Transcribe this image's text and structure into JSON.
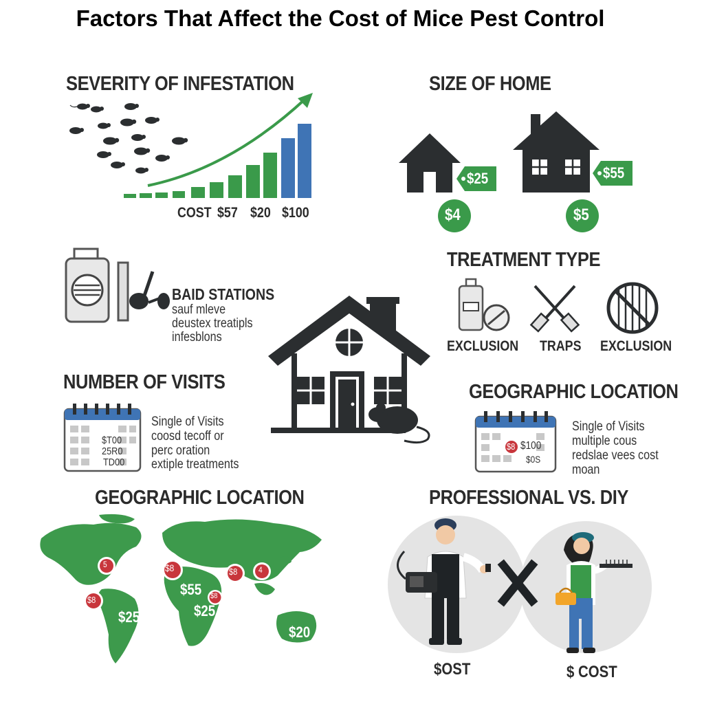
{
  "title": "Factors That Affect the Cost of Mice Pest Control",
  "severity": {
    "heading": "SEVERITY OF INFESTATION",
    "cost_labels": [
      "COST",
      "$57",
      "$20",
      "$100"
    ]
  },
  "size_of_home": {
    "heading": "SIZE OF HOME",
    "small_home_tag": "$25",
    "large_home_tag": "$55",
    "small_home_badge": "$4",
    "large_home_badge": "$5"
  },
  "bait_stations": {
    "label": "BAID STATIONS",
    "lines": [
      "sauf mleve",
      "deustex treatipls",
      "infesblons"
    ]
  },
  "treatment_type": {
    "heading": "TREATMENT TYPE",
    "items": [
      "EXCLUSION",
      "TRAPS",
      "EXCLUSION"
    ]
  },
  "number_of_visits": {
    "heading": "NUMBER OF VISITS",
    "calendar_values": [
      "$T00",
      "25R0",
      "TD00"
    ],
    "lines": [
      "Single of Visits",
      "coosd tecoff or",
      "perc oration",
      "extiple treatments"
    ]
  },
  "geographic_location_right": {
    "heading": "GEOGRAPHIC LOCATION",
    "calendar_badge": "$8",
    "calendar_values": [
      "$100",
      "$0S"
    ],
    "lines": [
      "Single of Visits",
      "multiple cous",
      "redslae vees cost",
      "moan"
    ]
  },
  "geographic_location_map": {
    "heading": "GEOGRAPHIC LOCATION",
    "pins": [
      "5",
      "$8",
      "$8",
      "4",
      "$8",
      "$8"
    ],
    "prices": [
      "$55",
      "$25",
      "$25",
      "$20"
    ]
  },
  "professional_vs_diy": {
    "heading": "PROFESSIONAL VS. DIY",
    "professional_cost": "$OST",
    "diy_cost": "$ COST"
  },
  "colors": {
    "green": "#3a9a4a",
    "blue": "#3f74b5",
    "dark": "#2b2e30",
    "red": "#c8363c",
    "map_green": "#3d9a4c"
  }
}
